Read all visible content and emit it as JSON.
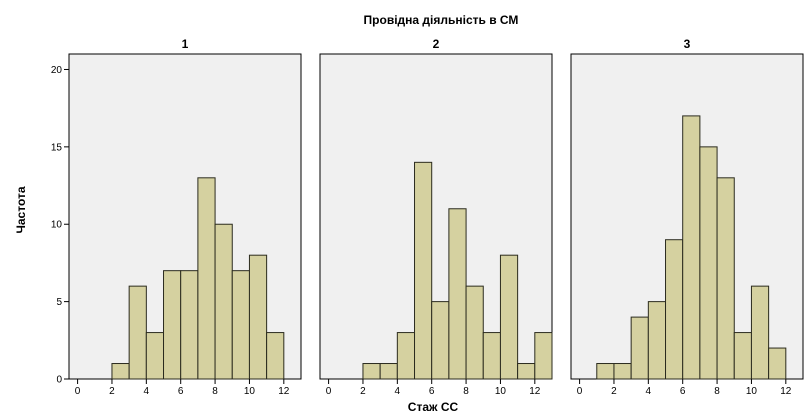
{
  "chart_data": {
    "type": "bar",
    "title": "Провідна діяльність в СМ",
    "xlabel": "Стаж СС",
    "ylabel": "Частота",
    "xlim": [
      -0.5,
      13
    ],
    "ylim": [
      0,
      21
    ],
    "x_ticks": [
      0,
      2,
      4,
      6,
      8,
      10,
      12
    ],
    "y_ticks": [
      0,
      5,
      10,
      15,
      20
    ],
    "bin_width": 1,
    "bin_starts": [
      0,
      1,
      2,
      3,
      4,
      5,
      6,
      7,
      8,
      9,
      10,
      11,
      12
    ],
    "grid": false,
    "colors": {
      "bar_fill": "#d5d1a0",
      "bar_stroke": "#2b2b1e",
      "panel_background": "#f0f0f0"
    },
    "panels": [
      {
        "label": "1",
        "values": [
          0,
          0,
          1,
          6,
          3,
          7,
          7,
          13,
          10,
          7,
          8,
          3,
          0
        ]
      },
      {
        "label": "2",
        "values": [
          0,
          0,
          1,
          1,
          3,
          14,
          5,
          11,
          6,
          3,
          8,
          1,
          3
        ]
      },
      {
        "label": "3",
        "values": [
          0,
          1,
          1,
          4,
          5,
          9,
          17,
          15,
          13,
          3,
          6,
          2,
          0
        ]
      }
    ]
  }
}
